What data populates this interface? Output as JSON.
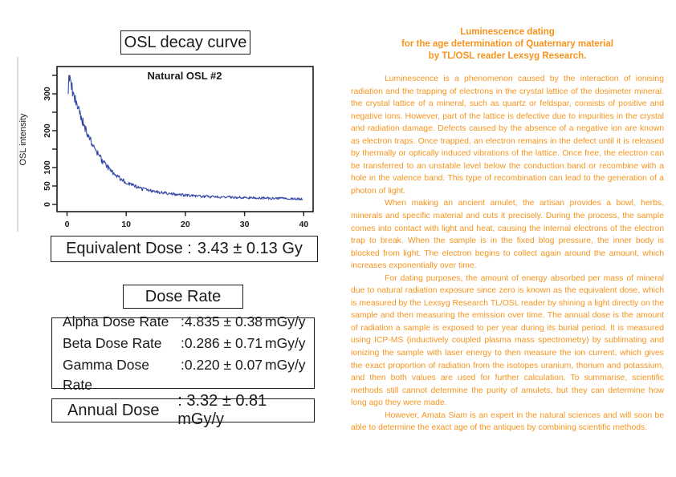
{
  "colors": {
    "ink": "#1a1a1a",
    "accent_orange": "#f7941d",
    "curve_blue": "#3448a5",
    "artifact_gray": "#dcdcdc"
  },
  "left_panel": {
    "chart_section_title": "OSL decay curve",
    "equivalent_dose": {
      "label": "Equivalent Dose :",
      "value": "3.43 ± 0.13 Gy"
    },
    "dose_rate_title": "Dose Rate",
    "dose_rates": [
      {
        "label": "Alpha Dose Rate",
        "value": ":4.835 ± 0.38",
        "unit": "mGy/y"
      },
      {
        "label": "Beta Dose Rate",
        "value": ":0.286 ± 0.71",
        "unit": "mGy/y"
      },
      {
        "label": "Gamma Dose Rate",
        "value": ":0.220 ± 0.07",
        "unit": "mGy/y"
      }
    ],
    "annual_dose": {
      "label": "Annual Dose",
      "value": ": 3.32 ± 0.81 mGy/y"
    }
  },
  "chart_data": {
    "type": "line",
    "title": "Natural OSL #2",
    "xlabel": "",
    "ylabel": "OSL intensity",
    "xlim": [
      0,
      40
    ],
    "ylim": [
      0,
      360
    ],
    "x_ticks": [
      0,
      10,
      20,
      30,
      40
    ],
    "y_ticks": [
      0,
      50,
      100,
      150,
      200,
      250,
      300,
      350
    ],
    "y_labeled_ticks": [
      0,
      50,
      100,
      200,
      300
    ],
    "grid": false,
    "legend": "none",
    "line_color": "#3448a5",
    "x_range": [
      0.2,
      39.8
    ],
    "points": [
      [
        0.2,
        310
      ],
      [
        0.35,
        352
      ],
      [
        0.5,
        335
      ],
      [
        0.8,
        318
      ],
      [
        1,
        302
      ],
      [
        1.3,
        285
      ],
      [
        1.6,
        272
      ],
      [
        2,
        252
      ],
      [
        2.4,
        235
      ],
      [
        2.8,
        220
      ],
      [
        3.2,
        202
      ],
      [
        3.6,
        188
      ],
      [
        4,
        172
      ],
      [
        4.5,
        156
      ],
      [
        5,
        142
      ],
      [
        5.5,
        129
      ],
      [
        6,
        117
      ],
      [
        6.5,
        107
      ],
      [
        7,
        98
      ],
      [
        7.5,
        90
      ],
      [
        8,
        83
      ],
      [
        8.5,
        76
      ],
      [
        9,
        70
      ],
      [
        9.5,
        65
      ],
      [
        10,
        60
      ],
      [
        10.5,
        56
      ],
      [
        11,
        52
      ],
      [
        11.5,
        49
      ],
      [
        12,
        46
      ],
      [
        13,
        41
      ],
      [
        14,
        38
      ],
      [
        15,
        35
      ],
      [
        16,
        32
      ],
      [
        17,
        30
      ],
      [
        18,
        28
      ],
      [
        19,
        26
      ],
      [
        20,
        25
      ],
      [
        21,
        24
      ],
      [
        22,
        23
      ],
      [
        23,
        22
      ],
      [
        24,
        21
      ],
      [
        25,
        21
      ],
      [
        26,
        20
      ],
      [
        27,
        20
      ],
      [
        28,
        19
      ],
      [
        29,
        19
      ],
      [
        30,
        18
      ],
      [
        31,
        18
      ],
      [
        32,
        17
      ],
      [
        33,
        17
      ],
      [
        34,
        17
      ],
      [
        35,
        16
      ],
      [
        36,
        16
      ],
      [
        37,
        16
      ],
      [
        38,
        15
      ],
      [
        39,
        15
      ],
      [
        39.8,
        15
      ]
    ],
    "noise": {
      "seed": 9,
      "samples": 430,
      "base_amplitude": 2.6,
      "proportional_amplitude": 0.05
    }
  },
  "right_panel": {
    "text_color": "#f7941d",
    "heading_lines": [
      "Luminescence dating",
      "for the age determination of Quaternary material",
      "by TL/OSL reader Lexsyg Research."
    ],
    "paragraphs": [
      "Luminescence is a phenomenon caused by the interaction of ionising radiation and the trapping of electrons in the crystal lattice of the dosimeter mineral. the crystal lattice of a mineral, such as quartz or feldspar, consists of positive and negative ions. However, part of the lattice is defective due to impurities in the crystal and radiation damage. Defects caused by the absence of a negative ion are known as electron traps. Once trapped, an electron remains in the defect until it is released by thermally or optically induced vibrations of the lattice. Once free, the electron can be transferred to an unstable level below the conduction band or recombine with a hole in the valence band. This type of recombination can lead to the generation of a photon of light.",
      "When making an ancient amulet, the artisan provides a bowl, herbs, minerals and specific material and cuts it precisely. During the process, the sample comes into contact with light and heat, causing the internal electrons of the electron trap to break. When the sample is in the fixed blog pressure, the inner body is blocked from light. The electron begins to collect again around the amount, which increases exponentially over time.",
      "For dating purposes, the amount of energy absorbed per mass of mineral due to natural radiation exposure since zero is known as the equivalent dose, which is measured by the Lexsyg Research TL/OSL reader by shining a light directly on the sample and then measuring the emission over time. The annual dose is the amount of radiation a sample is exposed to per year during its burial period. It is measured using ICP-MS (inductively coupled plasma mass spectrometry) by sublimating and ionizing the sample with laser energy to then measure the ion current, which gives the exact proportion of radiation from the isotopes uranium, thorium and potassium, and then both values are used for further calculation. To summarise, scientific methods still cannot determine the purity of amulets, but they can determine how long ago they were made.",
      "However, Amata Siam is an expert in the natural sciences and will soon be able to determine the exact age of the antiques by combining scientific methods."
    ]
  }
}
